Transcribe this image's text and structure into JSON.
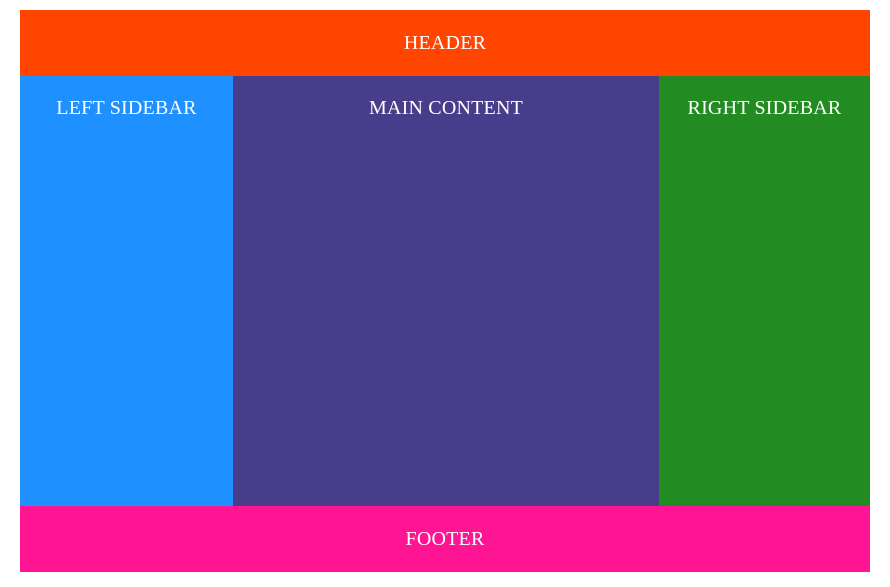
{
  "header": {
    "title": "HEADER",
    "color": "#FF4500"
  },
  "left_sidebar": {
    "title": "LEFT SIDEBAR",
    "color": "#1E90FF"
  },
  "main_content": {
    "title": "MAIN CONTENT",
    "color": "#483D8B"
  },
  "right_sidebar": {
    "title": "RIGHT SIDEBAR",
    "color": "#228B22"
  },
  "footer": {
    "title": "FOOTER",
    "color": "#FF1493"
  }
}
